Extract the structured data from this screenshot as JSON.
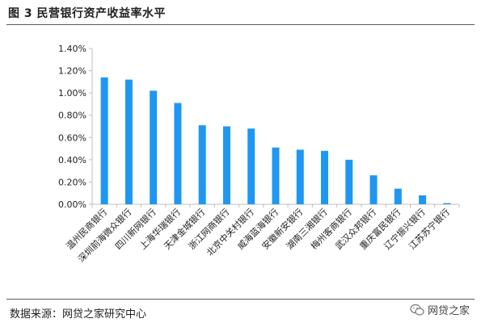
{
  "header": {
    "title": "图 3  民营银行资产收益率水平"
  },
  "footer": {
    "source": "数据来源：网贷之家研究中心",
    "watermark": "网贷之家"
  },
  "icons": {
    "watermark_icon": "wechat-icon"
  },
  "colors": {
    "bar": "#1F97F2",
    "axis": "#BFBFBF"
  },
  "chart_data": {
    "type": "bar",
    "title": "",
    "xlabel": "",
    "ylabel": "",
    "ylim": [
      0,
      0.014
    ],
    "yticks": [
      "0.00%",
      "0.20%",
      "0.40%",
      "0.60%",
      "0.80%",
      "1.00%",
      "1.20%",
      "1.40%"
    ],
    "grid": false,
    "legend": "none",
    "categories": [
      "温州民商银行",
      "深圳前海微众银行",
      "四川新网银行",
      "上海华瑞银行",
      "天津金城银行",
      "浙江网商银行",
      "北京中关村银行",
      "威海蓝海银行",
      "安徽新安银行",
      "湖南三湘银行",
      "梅州客商银行",
      "武汉众邦银行",
      "重庆富民银行",
      "辽宁振兴银行",
      "江苏苏宁银行"
    ],
    "values": [
      0.0114,
      0.0112,
      0.0102,
      0.0091,
      0.0071,
      0.007,
      0.0068,
      0.0051,
      0.0049,
      0.0048,
      0.004,
      0.0026,
      0.0014,
      0.0008,
      0.0001
    ]
  }
}
